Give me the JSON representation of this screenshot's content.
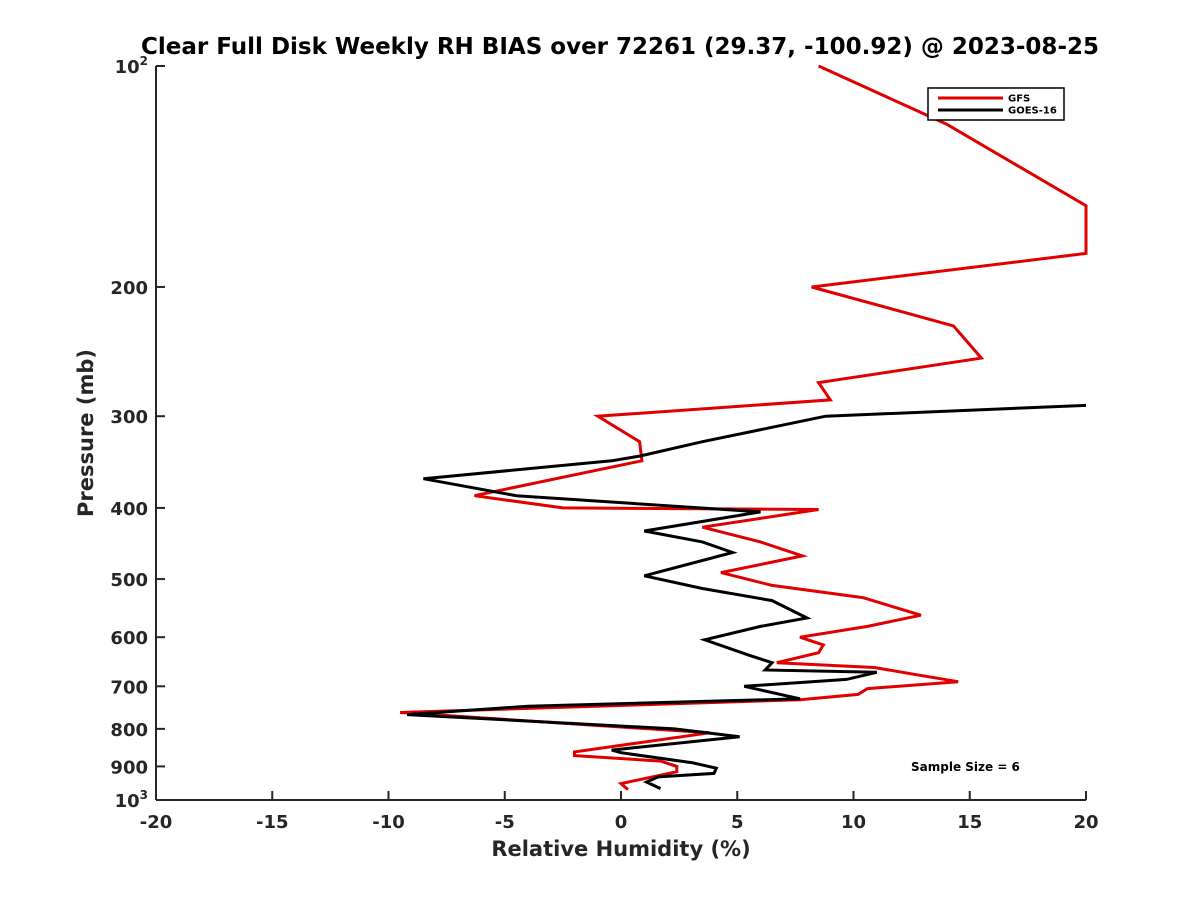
{
  "chart_data": {
    "type": "line",
    "title": "Clear Full Disk Weekly RH BIAS over 72261 (29.37, -100.92) @ 2023-08-25",
    "xlabel": "Relative Humidity (%)",
    "ylabel": "Pressure (mb)",
    "xlim": [
      -20,
      20
    ],
    "ylim": [
      100,
      1000
    ],
    "y_scale": "log",
    "y_reversed": true,
    "x_ticks": [
      -20,
      -15,
      -10,
      -5,
      0,
      5,
      10,
      15,
      20
    ],
    "x_tick_labels": [
      "-20",
      "-15",
      "-10",
      "-5",
      "0",
      "5",
      "10",
      "15",
      "20"
    ],
    "y_ticks": [
      {
        "value": 100,
        "base": "10",
        "exp": "2"
      },
      {
        "value": 200,
        "base": "200",
        "exp": ""
      },
      {
        "value": 300,
        "base": "300",
        "exp": ""
      },
      {
        "value": 400,
        "base": "400",
        "exp": ""
      },
      {
        "value": 500,
        "base": "500",
        "exp": ""
      },
      {
        "value": 600,
        "base": "600",
        "exp": ""
      },
      {
        "value": 700,
        "base": "700",
        "exp": ""
      },
      {
        "value": 800,
        "base": "800",
        "exp": ""
      },
      {
        "value": 900,
        "base": "900",
        "exp": ""
      },
      {
        "value": 1000,
        "base": "10",
        "exp": "3"
      }
    ],
    "grid": false,
    "legend_position": "top-right",
    "annotation": "Sample Size = 6",
    "series": [
      {
        "name": "GFS",
        "color": "#e00000",
        "points": [
          [
            8.5,
            100
          ],
          [
            14,
            120
          ],
          [
            20,
            155
          ],
          [
            20,
            180
          ],
          [
            8.2,
            200
          ],
          [
            14.3,
            226
          ],
          [
            15.5,
            250
          ],
          [
            8.5,
            270
          ],
          [
            9,
            285
          ],
          [
            -1,
            300
          ],
          [
            0.8,
            325
          ],
          [
            0.9,
            345
          ],
          [
            -6.3,
            385
          ],
          [
            -2.5,
            400
          ],
          [
            8.5,
            402
          ],
          [
            3.5,
            425
          ],
          [
            6,
            445
          ],
          [
            7.8,
            465
          ],
          [
            4.3,
            490
          ],
          [
            6.5,
            510
          ],
          [
            10.4,
            530
          ],
          [
            12.9,
            560
          ],
          [
            10.6,
            580
          ],
          [
            7.7,
            600
          ],
          [
            8.7,
            615
          ],
          [
            8.5,
            630
          ],
          [
            6.7,
            650
          ],
          [
            10.9,
            660
          ],
          [
            12.7,
            675
          ],
          [
            14.5,
            690
          ],
          [
            10.6,
            705
          ],
          [
            10.2,
            718
          ],
          [
            7.7,
            730
          ],
          [
            -9.5,
            760
          ],
          [
            3.8,
            810
          ],
          [
            -2,
            860
          ],
          [
            -2,
            870
          ],
          [
            1.7,
            885
          ],
          [
            2.4,
            900
          ],
          [
            2.4,
            915
          ],
          [
            0,
            950
          ],
          [
            0.3,
            968
          ]
        ]
      },
      {
        "name": "GOES-16",
        "color": "#000000",
        "points": [
          [
            20,
            290
          ],
          [
            8.8,
            300
          ],
          [
            3.5,
            325
          ],
          [
            0.8,
            340
          ],
          [
            -0.4,
            345
          ],
          [
            -8.5,
            365
          ],
          [
            -4.5,
            385
          ],
          [
            6,
            405
          ],
          [
            1,
            430
          ],
          [
            3.5,
            445
          ],
          [
            4.8,
            460
          ],
          [
            1,
            495
          ],
          [
            3.5,
            515
          ],
          [
            6.5,
            535
          ],
          [
            8,
            565
          ],
          [
            6,
            580
          ],
          [
            3.6,
            605
          ],
          [
            5.5,
            635
          ],
          [
            6.5,
            650
          ],
          [
            6.2,
            665
          ],
          [
            11,
            670
          ],
          [
            9.7,
            685
          ],
          [
            5.3,
            700
          ],
          [
            7.7,
            728
          ],
          [
            -4,
            745
          ],
          [
            -9.2,
            765
          ],
          [
            2.3,
            800
          ],
          [
            5.1,
            820
          ],
          [
            -0.4,
            855
          ],
          [
            0,
            862
          ],
          [
            3.1,
            890
          ],
          [
            4.1,
            905
          ],
          [
            4,
            920
          ],
          [
            1.6,
            930
          ],
          [
            1.1,
            945
          ],
          [
            1.7,
            965
          ]
        ]
      }
    ]
  }
}
